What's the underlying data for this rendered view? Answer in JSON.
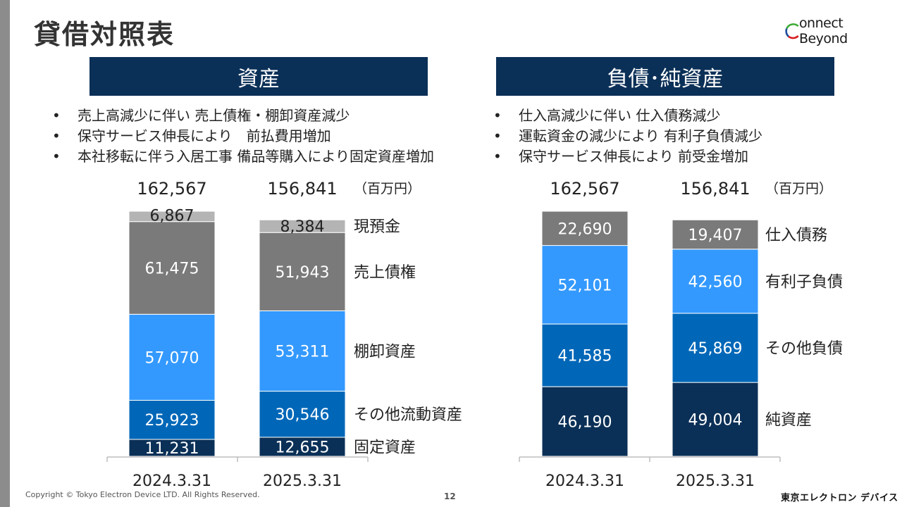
{
  "title": "貸借対照表",
  "logo": {
    "text": "onnect Beyond",
    "icon": "c-ring-logo-icon"
  },
  "sections": {
    "assets": {
      "header": "資産",
      "bullets": [
        "売上高減少に伴い 売上債権・棚卸資産減少",
        "保守サービス伸長により　前払費用増加",
        "本社移転に伴う入居工事 備品等購入により固定資産増加"
      ]
    },
    "liabilities": {
      "header": "負債･純資産",
      "bullets": [
        "仕入高減少に伴い 仕入債務減少",
        "運転資金の減少により 有利子負債減少",
        "保守サービス伸長により 前受金増加"
      ]
    }
  },
  "unit_label": "（百万円）",
  "chart_data": [
    {
      "type": "bar",
      "stacked": true,
      "categories": [
        "2024.3.31",
        "2025.3.31"
      ],
      "totals": [
        "162,567",
        "156,841"
      ],
      "series": [
        {
          "name": "固定資産",
          "values": [
            11231,
            12655
          ],
          "color": "#0b3057",
          "text_color": "#ffffff"
        },
        {
          "name": "その他流動資産",
          "values": [
            25923,
            30546
          ],
          "color": "#0067b8",
          "text_color": "#ffffff"
        },
        {
          "name": "棚卸資産",
          "values": [
            57070,
            53311
          ],
          "color": "#3399ff",
          "text_color": "#ffffff"
        },
        {
          "name": "売上債権",
          "values": [
            61475,
            51943
          ],
          "color": "#7a7a7a",
          "text_color": "#ffffff"
        },
        {
          "name": "現預金",
          "values": [
            6867,
            8384
          ],
          "color": "#b4b4b4",
          "text_color": "#222222"
        }
      ]
    },
    {
      "type": "bar",
      "stacked": true,
      "categories": [
        "2024.3.31",
        "2025.3.31"
      ],
      "totals": [
        "162,567",
        "156,841"
      ],
      "series": [
        {
          "name": "純資産",
          "values": [
            46190,
            49004
          ],
          "color": "#0b3057",
          "text_color": "#ffffff"
        },
        {
          "name": "その他負債",
          "values": [
            41585,
            45869
          ],
          "color": "#0067b8",
          "text_color": "#ffffff"
        },
        {
          "name": "有利子負債",
          "values": [
            52101,
            42560
          ],
          "color": "#3399ff",
          "text_color": "#ffffff"
        },
        {
          "name": "仕入債務",
          "values": [
            22690,
            19407
          ],
          "color": "#7a7a7a",
          "text_color": "#ffffff"
        }
      ]
    }
  ],
  "footer": {
    "copyright": "Copyright © Tokyo Electron Device LTD. All Rights Reserved.",
    "page": "12",
    "company": "東京エレクトロン デバイス"
  }
}
